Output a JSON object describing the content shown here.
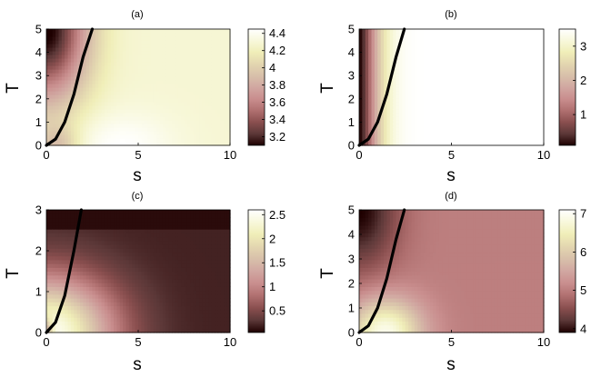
{
  "chart_data": [
    {
      "type": "heatmap",
      "panel_label": "(a)",
      "title": "(a)",
      "xlabel": "s",
      "ylabel": "T",
      "xlim": [
        0,
        10
      ],
      "ylim": [
        0,
        5
      ],
      "x_ticks": [
        "0",
        "5",
        "10"
      ],
      "y_ticks": [
        "0",
        "1",
        "2",
        "3",
        "4",
        "5"
      ],
      "colorbar": {
        "min": 3.1,
        "max": 4.45,
        "ticks": [
          "3.2",
          "3.4",
          "3.6",
          "3.8",
          "4",
          "4.2",
          "4.4"
        ]
      },
      "field_description": "dark (~3.1) near upper-left, lightening to ~4.3 elsewhere, lightest (~4.45) near s=4, T=0",
      "curve": {
        "x": [
          0,
          0.5,
          1.0,
          1.5,
          2.0,
          2.5
        ],
        "y": [
          0,
          0.27,
          1.0,
          2.2,
          3.8,
          5.0
        ]
      }
    },
    {
      "type": "heatmap",
      "panel_label": "(b)",
      "title": "(b)",
      "xlabel": "s",
      "ylabel": "T",
      "xlim": [
        0,
        10
      ],
      "ylim": [
        0,
        5
      ],
      "x_ticks": [
        "0",
        "5",
        "10"
      ],
      "y_ticks": [
        "0",
        "1",
        "2",
        "3",
        "4",
        "5"
      ],
      "colorbar": {
        "min": 0.1,
        "max": 3.5,
        "ticks": [
          "1",
          "2",
          "3"
        ]
      },
      "field_description": "dark (~0.1) at s=0, rising rapidly to ~3.5 by s≈3 for all T",
      "curve": {
        "x": [
          0,
          0.5,
          1.0,
          1.5,
          2.0,
          2.45
        ],
        "y": [
          0,
          0.27,
          1.0,
          2.2,
          3.8,
          5.0
        ]
      }
    },
    {
      "type": "heatmap",
      "panel_label": "(c)",
      "title": "(c)",
      "xlabel": "s",
      "ylabel": "T",
      "xlim": [
        0,
        10
      ],
      "ylim": [
        0,
        3
      ],
      "x_ticks": [
        "0",
        "5",
        "10"
      ],
      "y_ticks": [
        "0",
        "1",
        "2",
        "3"
      ],
      "colorbar": {
        "min": 0.05,
        "max": 2.6,
        "ticks": [
          "0.5",
          "1",
          "1.5",
          "2",
          "2.5"
        ]
      },
      "field_description": "brightest (~2.6) near s≈2, T=0, fading to ~0.05 for large s or T",
      "curve": {
        "x": [
          0,
          0.5,
          1.0,
          1.5,
          1.9
        ],
        "y": [
          0,
          0.25,
          0.9,
          2.0,
          3.0
        ]
      }
    },
    {
      "type": "heatmap",
      "panel_label": "(d)",
      "title": "(d)",
      "xlabel": "s",
      "ylabel": "T",
      "xlim": [
        0,
        10
      ],
      "ylim": [
        0,
        5
      ],
      "x_ticks": [
        "0",
        "5",
        "10"
      ],
      "y_ticks": [
        "0",
        "1",
        "2",
        "3",
        "4",
        "5"
      ],
      "colorbar": {
        "min": 3.9,
        "max": 7.1,
        "ticks": [
          "4",
          "5",
          "6",
          "7"
        ]
      },
      "field_description": "dark (~3.9) near upper-left, ~5 plateau for large s, brightest (~7.1) near s≈1.5, T=0",
      "curve": {
        "x": [
          0,
          0.5,
          1.0,
          1.5,
          2.0,
          2.45
        ],
        "y": [
          0,
          0.27,
          1.0,
          2.2,
          3.8,
          5.0
        ]
      }
    }
  ],
  "colormap": {
    "name": "pink",
    "stops": [
      "#1e0000",
      "#5c3838",
      "#8a4f4f",
      "#b07070",
      "#c98e8e",
      "#d1a7a1",
      "#d8c0aa",
      "#e3d6b0",
      "#f0eeb8",
      "#f8f8db",
      "#ffffff"
    ]
  }
}
